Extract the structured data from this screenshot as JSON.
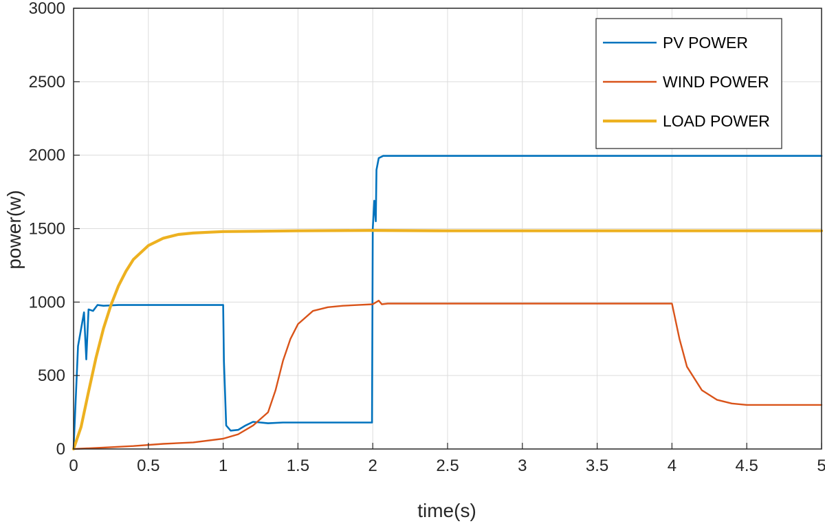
{
  "chart_data": {
    "type": "line",
    "title": "",
    "xlabel": "time(s)",
    "ylabel": "power(w)",
    "xlim": [
      0,
      5
    ],
    "ylim": [
      0,
      3000
    ],
    "xticks": [
      0,
      0.5,
      1,
      1.5,
      2,
      2.5,
      3,
      3.5,
      4,
      4.5,
      5
    ],
    "yticks": [
      0,
      500,
      1000,
      1500,
      2000,
      2500,
      3000
    ],
    "xtick_labels": [
      "0",
      "0.5",
      "1",
      "1.5",
      "2",
      "2.5",
      "3",
      "3.5",
      "4",
      "4.5",
      "5"
    ],
    "ytick_labels": [
      "0",
      "500",
      "1000",
      "1500",
      "2000",
      "2500",
      "3000"
    ],
    "grid": true,
    "legend_position": "top-right",
    "series": [
      {
        "name": "PV POWER",
        "color": "#0072BD",
        "x": [
          0,
          0.03,
          0.07,
          0.085,
          0.1,
          0.13,
          0.16,
          0.2,
          0.3,
          0.5,
          0.8,
          1.0,
          1.005,
          1.02,
          1.05,
          1.1,
          1.15,
          1.2,
          1.25,
          1.3,
          1.4,
          1.6,
          1.8,
          1.995,
          2.0,
          2.01,
          2.02,
          2.025,
          2.04,
          2.07,
          2.2,
          3.0,
          4.0,
          5.0
        ],
        "y": [
          0,
          700,
          930,
          610,
          950,
          940,
          980,
          975,
          980,
          980,
          980,
          980,
          600,
          160,
          125,
          130,
          160,
          185,
          180,
          175,
          180,
          180,
          180,
          180,
          1500,
          1690,
          1550,
          1900,
          1980,
          1995,
          1995,
          1995,
          1995,
          1995
        ]
      },
      {
        "name": "WIND POWER",
        "color": "#D95319",
        "x": [
          0,
          0.2,
          0.4,
          0.6,
          0.8,
          1.0,
          1.1,
          1.2,
          1.3,
          1.35,
          1.4,
          1.45,
          1.5,
          1.6,
          1.7,
          1.8,
          1.9,
          2.0,
          2.04,
          2.06,
          2.1,
          2.5,
          3.0,
          3.5,
          4.0,
          4.05,
          4.1,
          4.2,
          4.3,
          4.4,
          4.5,
          4.7,
          5.0
        ],
        "y": [
          0,
          10,
          20,
          35,
          45,
          70,
          100,
          160,
          250,
          400,
          600,
          750,
          850,
          940,
          965,
          975,
          980,
          985,
          1010,
          985,
          990,
          990,
          990,
          990,
          990,
          750,
          560,
          400,
          335,
          310,
          300,
          300,
          300
        ]
      },
      {
        "name": "LOAD POWER",
        "color": "#EDB120",
        "x": [
          0,
          0.05,
          0.1,
          0.15,
          0.2,
          0.25,
          0.3,
          0.35,
          0.4,
          0.5,
          0.6,
          0.7,
          0.8,
          0.9,
          1.0,
          1.5,
          2.0,
          2.5,
          3.0,
          3.5,
          4.0,
          4.5,
          5.0
        ],
        "y": [
          0,
          150,
          390,
          620,
          820,
          980,
          1110,
          1210,
          1290,
          1385,
          1435,
          1460,
          1470,
          1475,
          1480,
          1485,
          1488,
          1485,
          1485,
          1485,
          1485,
          1485,
          1485
        ]
      }
    ]
  }
}
